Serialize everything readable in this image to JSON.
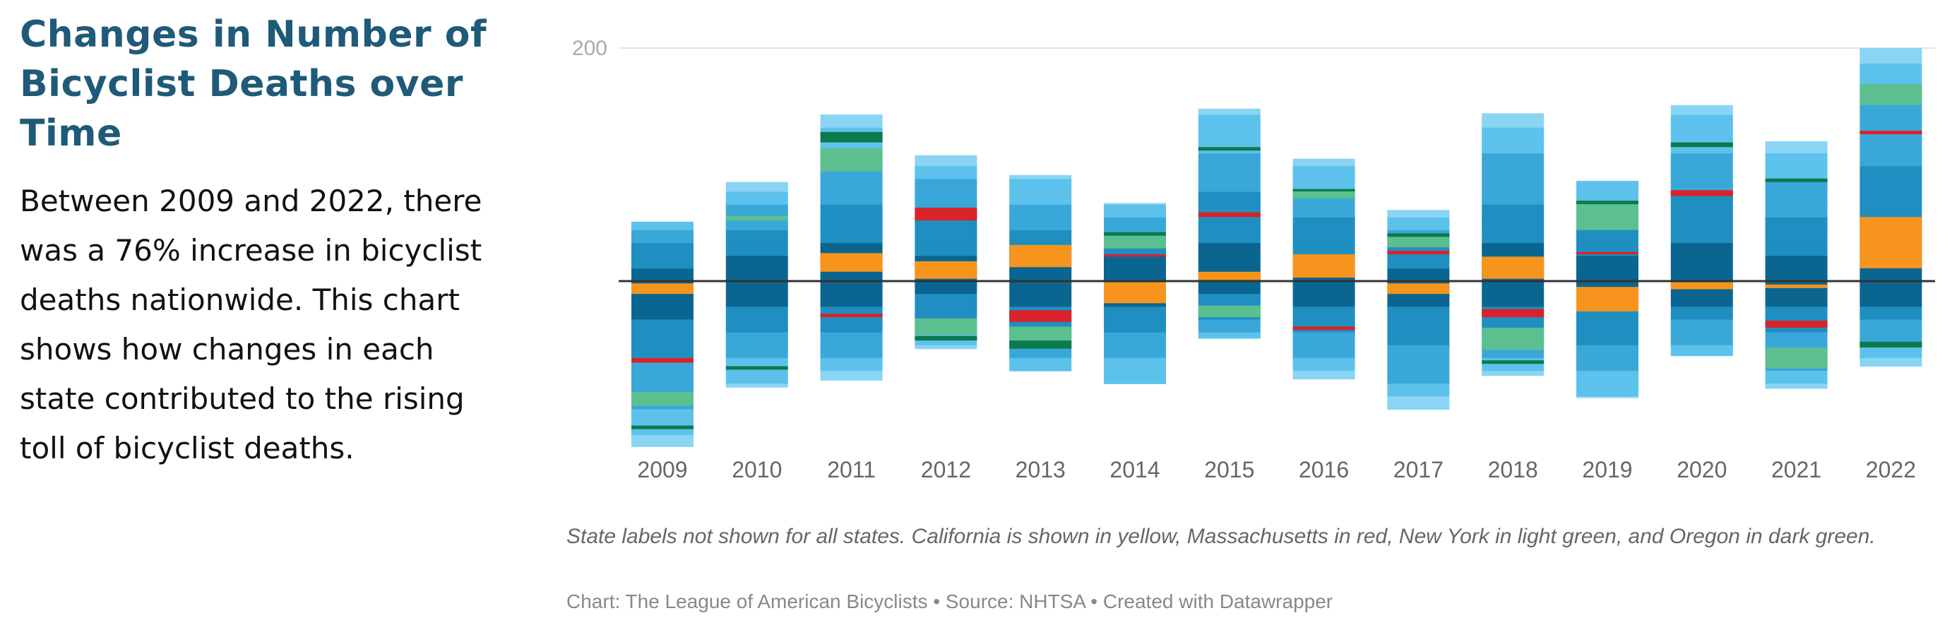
{
  "title": "Changes in Number of Bicyclist Deaths over Time",
  "description": "Between 2009 and 2022, there was a 76% increase in bicyclist deaths nationwide. This chart shows how changes in each state contributed to the rising toll of bicyclist deaths.",
  "note": "State labels not shown for all states. California is shown in yellow, Massachusetts in red, New York in light green, and Oregon in dark green.",
  "credit": "Chart: The League of American Bicyclists • Source: NHTSA • Created with Datawrapper",
  "chart_data": {
    "type": "bar",
    "stacking": "diverging",
    "categories": [
      "2009",
      "2010",
      "2011",
      "2012",
      "2013",
      "2014",
      "2015",
      "2016",
      "2017",
      "2018",
      "2019",
      "2020",
      "2021",
      "2022"
    ],
    "y_ticks": [
      200
    ],
    "ylim": [
      -140,
      200
    ],
    "zero_line": true,
    "colors": {
      "California": "#f7941d",
      "Massachusetts": "#d9222a",
      "New York": "#5cbf90",
      "Oregon": "#0c7a4a",
      "other_states": [
        "#0a6690",
        "#1f8fc1",
        "#3aa7d9",
        "#5cc2ec",
        "#8ad4f4"
      ]
    },
    "highlight_names": [
      "California",
      "Massachusetts",
      "New York",
      "Oregon"
    ],
    "bars": [
      {
        "year": "2009",
        "pos": 51,
        "neg": -142,
        "pos_hl": [],
        "neg_hl": [
          {
            "state": "California",
            "from": -2,
            "to": -11
          },
          {
            "state": "Massachusetts",
            "from": -66,
            "to": -70
          },
          {
            "state": "New York",
            "from": -95,
            "to": -107
          },
          {
            "state": "Oregon",
            "from": -124,
            "to": -127
          }
        ]
      },
      {
        "year": "2010",
        "pos": 85,
        "neg": -91,
        "pos_hl": [
          {
            "state": "New York",
            "from": 52,
            "to": 56
          }
        ],
        "neg_hl": [
          {
            "state": "Oregon",
            "from": -73,
            "to": -76
          }
        ]
      },
      {
        "year": "2011",
        "pos": 143,
        "neg": -85,
        "pos_hl": [
          {
            "state": "California",
            "from": 8,
            "to": 24
          },
          {
            "state": "New York",
            "from": 94,
            "to": 114
          },
          {
            "state": "Oregon",
            "from": 119,
            "to": 128
          }
        ],
        "neg_hl": [
          {
            "state": "Massachusetts",
            "from": -28,
            "to": -31
          }
        ]
      },
      {
        "year": "2012",
        "pos": 108,
        "neg": -58,
        "pos_hl": [
          {
            "state": "California",
            "from": 2,
            "to": 17
          },
          {
            "state": "Massachusetts",
            "from": 52,
            "to": 63
          }
        ],
        "neg_hl": [
          {
            "state": "New York",
            "from": -32,
            "to": -46
          },
          {
            "state": "Oregon",
            "from": -47,
            "to": -51
          }
        ]
      },
      {
        "year": "2013",
        "pos": 91,
        "neg": -77,
        "pos_hl": [
          {
            "state": "California",
            "from": 12,
            "to": 31
          }
        ],
        "neg_hl": [
          {
            "state": "Massachusetts",
            "from": -25,
            "to": -35
          },
          {
            "state": "New York",
            "from": -39,
            "to": -51
          },
          {
            "state": "Oregon",
            "from": -51,
            "to": -58
          }
        ]
      },
      {
        "year": "2014",
        "pos": 67,
        "neg": -88,
        "pos_hl": [
          {
            "state": "New York",
            "from": 28,
            "to": 39
          },
          {
            "state": "Oregon",
            "from": 39,
            "to": 42
          },
          {
            "state": "Massachusetts",
            "from": 21,
            "to": 23
          }
        ],
        "neg_hl": [
          {
            "state": "California",
            "from": -1,
            "to": -19
          }
        ]
      },
      {
        "year": "2015",
        "pos": 148,
        "neg": -49,
        "pos_hl": [
          {
            "state": "California",
            "from": 1,
            "to": 8
          },
          {
            "state": "Massachusetts",
            "from": 55,
            "to": 59
          },
          {
            "state": "Oregon",
            "from": 112,
            "to": 115
          }
        ],
        "neg_hl": [
          {
            "state": "New York",
            "from": -21,
            "to": -31
          }
        ]
      },
      {
        "year": "2016",
        "pos": 105,
        "neg": -84,
        "pos_hl": [
          {
            "state": "California",
            "from": 3,
            "to": 23
          },
          {
            "state": "New York",
            "from": 71,
            "to": 77
          },
          {
            "state": "Oregon",
            "from": 77,
            "to": 79
          }
        ],
        "neg_hl": [
          {
            "state": "Massachusetts",
            "from": -39,
            "to": -42
          }
        ]
      },
      {
        "year": "2017",
        "pos": 61,
        "neg": -110,
        "pos_hl": [
          {
            "state": "Massachusetts",
            "from": 23,
            "to": 26
          },
          {
            "state": "New York",
            "from": 29,
            "to": 38
          },
          {
            "state": "Oregon",
            "from": 38,
            "to": 41
          }
        ],
        "neg_hl": [
          {
            "state": "California",
            "from": -2,
            "to": -11
          }
        ]
      },
      {
        "year": "2018",
        "pos": 144,
        "neg": -81,
        "pos_hl": [
          {
            "state": "California",
            "from": 2,
            "to": 21
          }
        ],
        "neg_hl": [
          {
            "state": "Massachusetts",
            "from": -24,
            "to": -31
          },
          {
            "state": "New York",
            "from": -40,
            "to": -59
          },
          {
            "state": "Oregon",
            "from": -68,
            "to": -71
          }
        ]
      },
      {
        "year": "2019",
        "pos": 86,
        "neg": -100,
        "pos_hl": [
          {
            "state": "New York",
            "from": 44,
            "to": 66
          },
          {
            "state": "Oregon",
            "from": 66,
            "to": 69
          },
          {
            "state": "Massachusetts",
            "from": 23,
            "to": 25
          }
        ],
        "neg_hl": [
          {
            "state": "California",
            "from": -5,
            "to": -26
          }
        ]
      },
      {
        "year": "2020",
        "pos": 151,
        "neg": -64,
        "pos_hl": [
          {
            "state": "Massachusetts",
            "from": 73,
            "to": 78
          },
          {
            "state": "Oregon",
            "from": 115,
            "to": 119
          }
        ],
        "neg_hl": [
          {
            "state": "California",
            "from": -1,
            "to": -7
          }
        ]
      },
      {
        "year": "2021",
        "pos": 120,
        "neg": -92,
        "pos_hl": [
          {
            "state": "Oregon",
            "from": 85,
            "to": 88
          }
        ],
        "neg_hl": [
          {
            "state": "California",
            "from": -3,
            "to": -6
          },
          {
            "state": "Massachusetts",
            "from": -34,
            "to": -40
          },
          {
            "state": "New York",
            "from": -57,
            "to": -75
          }
        ]
      },
      {
        "year": "2022",
        "pos": 200,
        "neg": -73,
        "pos_hl": [
          {
            "state": "California",
            "from": 11,
            "to": 55
          },
          {
            "state": "Massachusetts",
            "from": 126,
            "to": 129
          },
          {
            "state": "New York",
            "from": 151,
            "to": 169
          }
        ],
        "neg_hl": [
          {
            "state": "Oregon",
            "from": -52,
            "to": -57
          }
        ]
      }
    ]
  }
}
